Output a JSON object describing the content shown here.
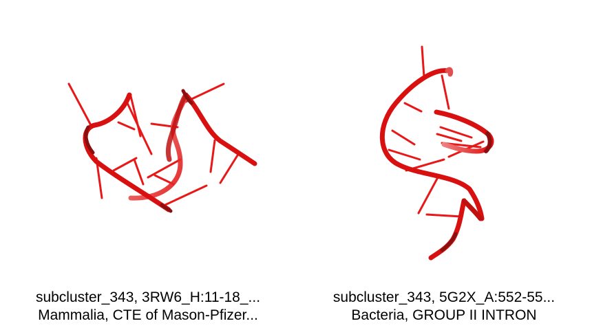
{
  "panels": [
    {
      "structure_image": "rna-3d-ribbon-render",
      "caption_line1": "subcluster_343, 3RW6_H:11-18_...",
      "caption_line2": "Mammalia, CTE of Mason-Pfizer..."
    },
    {
      "structure_image": "rna-3d-ribbon-render",
      "caption_line1": "subcluster_343, 5G2X_A:552-55...",
      "caption_line2": "Bacteria, GROUP II INTRON"
    }
  ],
  "colors": {
    "backbone": "#e01010",
    "backbone_dark": "#8a0a0a",
    "backbone_light": "#f07070",
    "base": "#e82020"
  }
}
